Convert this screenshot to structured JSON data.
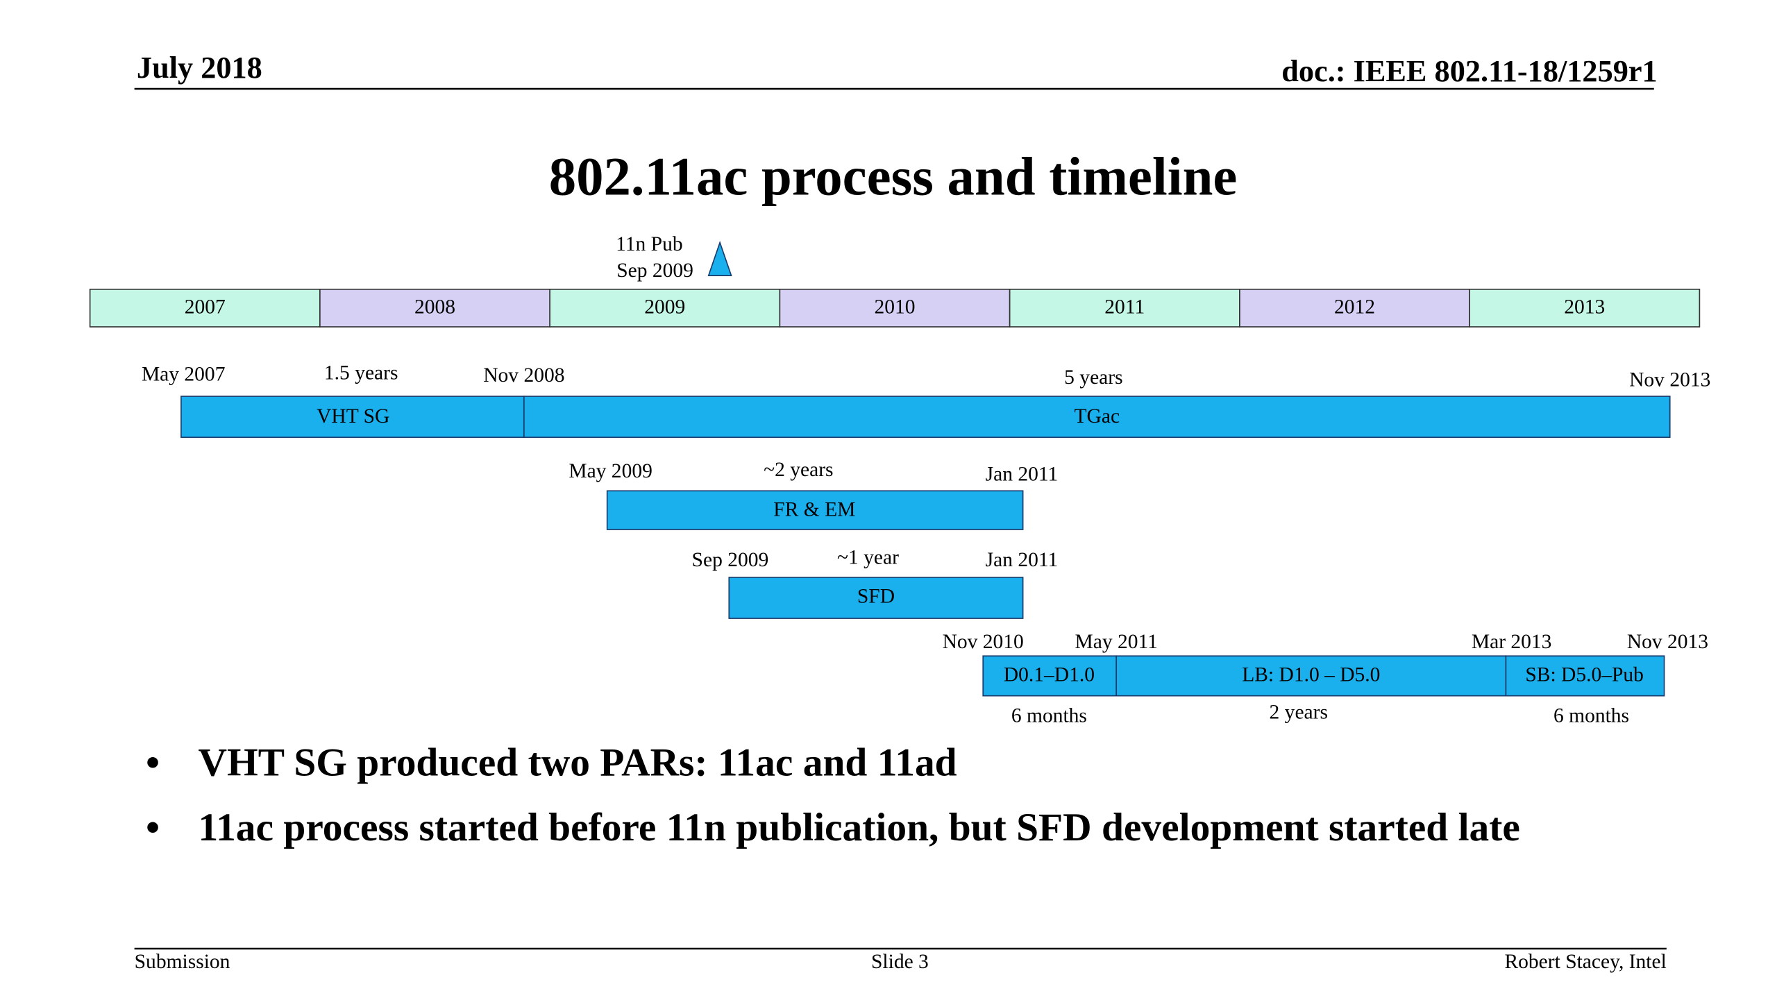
{
  "header": {
    "date": "July 2018",
    "doc": "doc.: IEEE 802.11-18/1259r1"
  },
  "title": "802.11ac process and timeline",
  "milestone": {
    "label": "11n Pub",
    "date": "Sep 2009"
  },
  "years": [
    "2007",
    "2008",
    "2009",
    "2010",
    "2011",
    "2012",
    "2013"
  ],
  "phases": [
    {
      "name": "VHT SG",
      "start": "May 2007",
      "duration": "1.5 years",
      "end": "Nov 2008"
    },
    {
      "name": "TGac",
      "duration": "5 years",
      "end": "Nov 2013"
    },
    {
      "name": "FR & EM",
      "start": "May 2009",
      "duration": "~2 years",
      "end": "Jan 2011"
    },
    {
      "name": "SFD",
      "start": "Sep 2009",
      "duration": "~1 year",
      "end": "Jan 2011"
    },
    {
      "name": "D0.1–D1.0",
      "start": "Nov 2010",
      "end": "May 2011",
      "duration": "6 months"
    },
    {
      "name": "LB: D1.0 – D5.0",
      "end": "Mar 2013",
      "duration": "2 years"
    },
    {
      "name": "SB: D5.0–Pub",
      "end": "Nov 2013",
      "duration": "6 months"
    }
  ],
  "bullets": [
    "VHT SG produced two PARs: 11ac and 11ad",
    "11ac process started before 11n publication, but SFD development started late"
  ],
  "footer": {
    "left": "Submission",
    "center": "Slide 3",
    "right": "Robert Stacey, Intel"
  }
}
